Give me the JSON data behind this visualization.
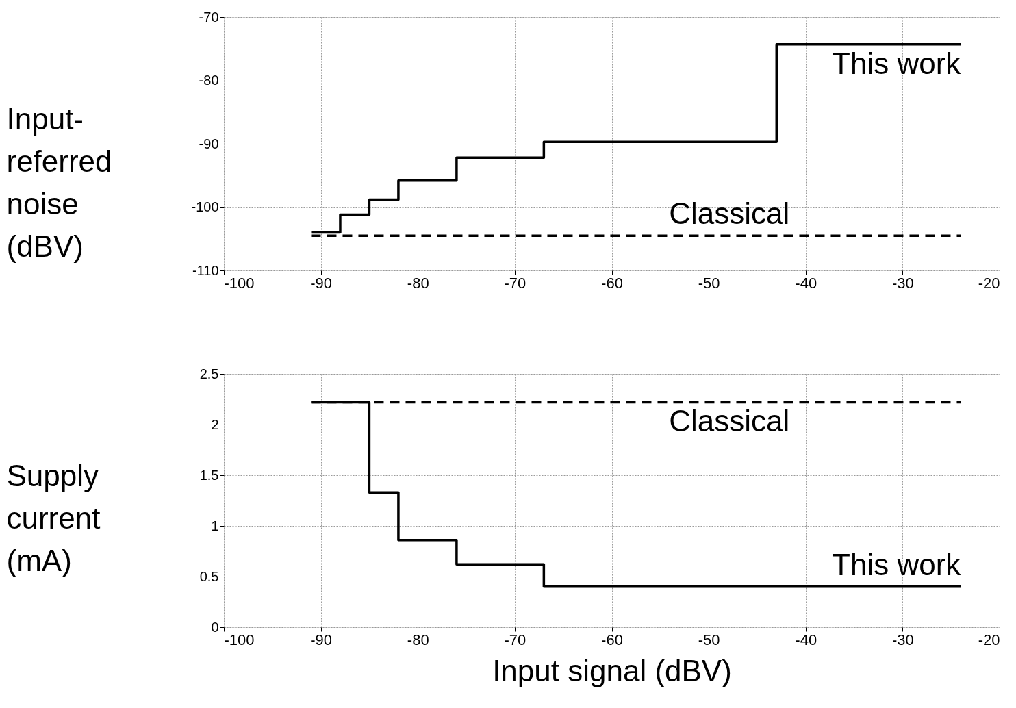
{
  "chart_data": [
    {
      "type": "step",
      "ylabel": "Input-referred noise (dBV)",
      "xlim": [
        -100,
        -20
      ],
      "xticks": [
        -100,
        -90,
        -80,
        -70,
        -60,
        -50,
        -40,
        -30,
        -20
      ],
      "ylim": [
        -110,
        -70
      ],
      "yticks": [
        -110,
        -100,
        -90,
        -80,
        -70
      ],
      "grid": true,
      "marker": "none",
      "series": [
        {
          "name": "This work",
          "color": "#000000",
          "line_style": "solid",
          "x": [
            -91,
            -88,
            -85,
            -82,
            -76,
            -67,
            -43,
            -24
          ],
          "values": [
            -104,
            -101.2,
            -98.8,
            -95.8,
            -92.2,
            -89.7,
            -74.3,
            -74.3
          ]
        },
        {
          "name": "Classical",
          "color": "#000000",
          "line_style": "dashed",
          "x": [
            -91,
            -24
          ],
          "values": [
            -104.5,
            -104.5
          ]
        }
      ]
    },
    {
      "type": "step",
      "ylabel": "Supply current (mA)",
      "xlabel": "Input signal (dBV)",
      "xlim": [
        -100,
        -20
      ],
      "xticks": [
        -100,
        -90,
        -80,
        -70,
        -60,
        -50,
        -40,
        -30,
        -20
      ],
      "ylim": [
        0,
        2.5
      ],
      "yticks": [
        0,
        0.5,
        1,
        1.5,
        2,
        2.5
      ],
      "grid": true,
      "marker": "none",
      "series": [
        {
          "name": "This work",
          "color": "#000000",
          "line_style": "solid",
          "x": [
            -91,
            -85,
            -82,
            -76,
            -67,
            -24
          ],
          "values": [
            2.22,
            1.33,
            0.86,
            0.62,
            0.4,
            0.4
          ]
        },
        {
          "name": "Classical",
          "color": "#000000",
          "line_style": "dashed",
          "x": [
            -91,
            -24
          ],
          "values": [
            2.22,
            2.22
          ]
        }
      ]
    }
  ]
}
